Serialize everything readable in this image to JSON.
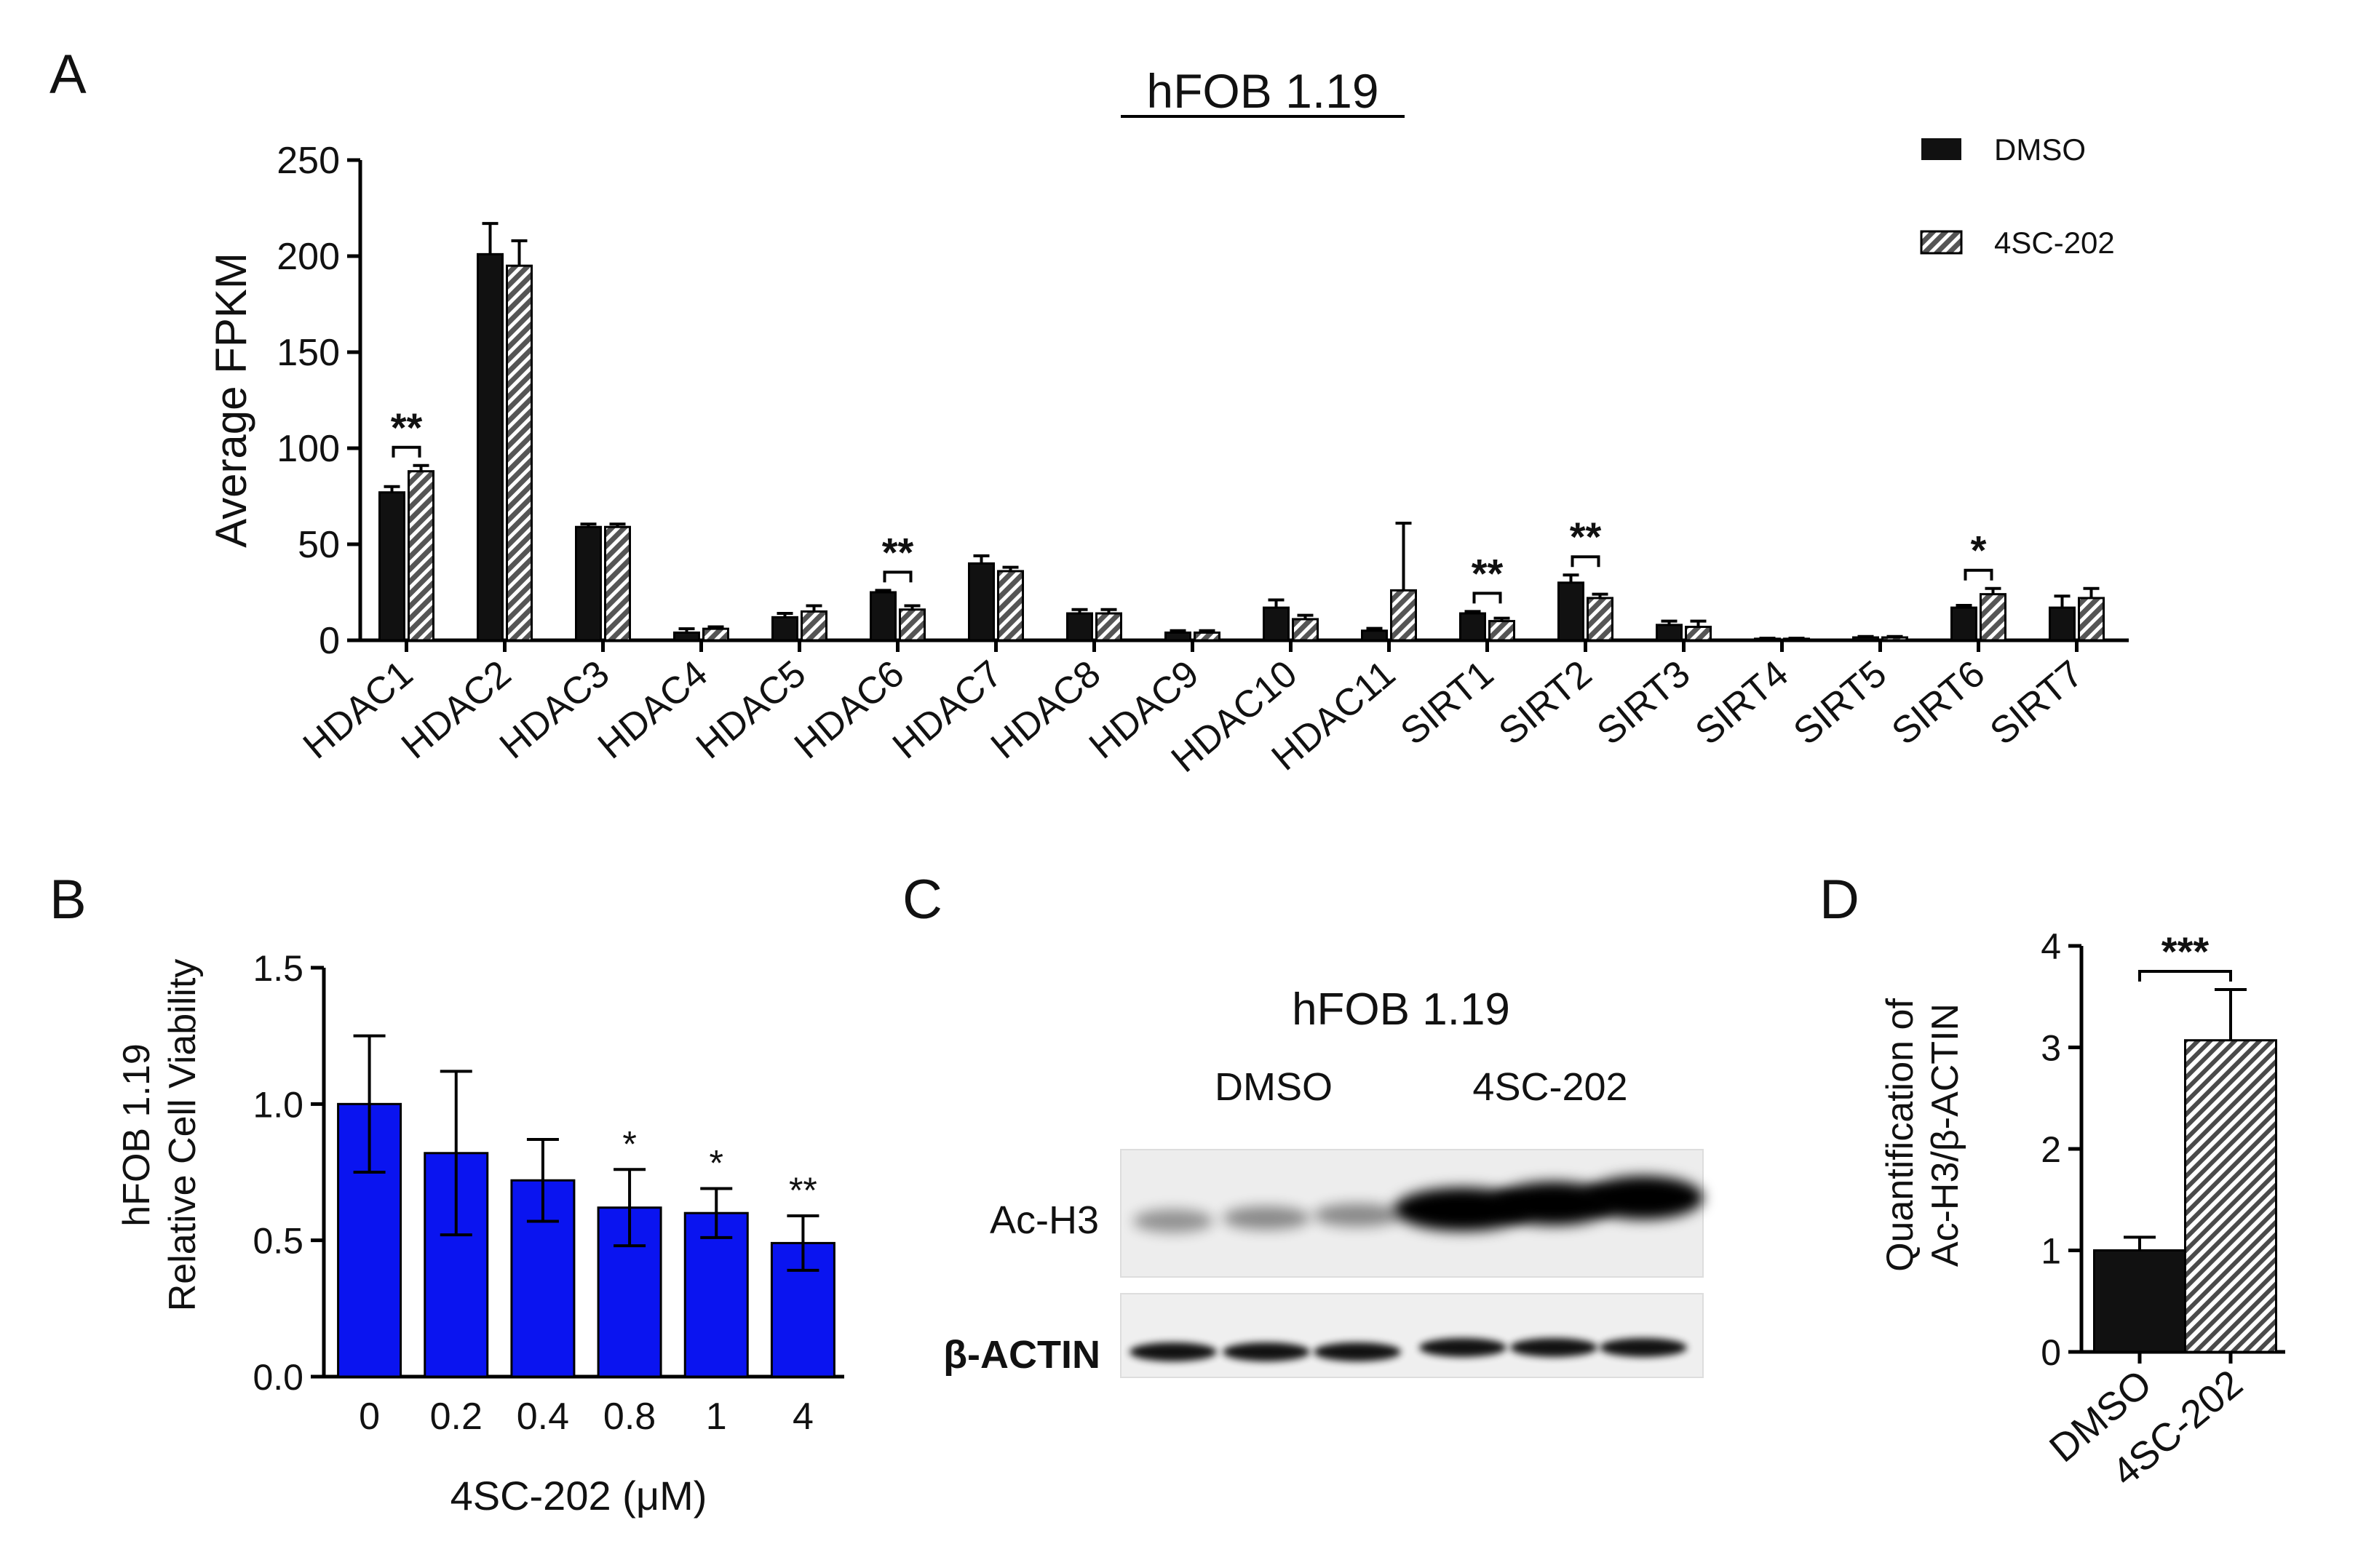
{
  "panels": {
    "a": "A",
    "b": "B",
    "c": "C",
    "d": "D"
  },
  "colors": {
    "dmso": "#111111",
    "treated_hatch": "#5a5a5a",
    "viability_bar": "#0a14f0",
    "axis": "#000000"
  },
  "chart_data": [
    {
      "type": "bar",
      "title": "hFOB 1.19",
      "xlabel": "",
      "ylabel": "Average FPKM",
      "ylim": [
        0,
        250
      ],
      "yticks": [
        "0",
        "50",
        "100",
        "150",
        "200",
        "250"
      ],
      "categories": [
        "HDAC1",
        "HDAC2",
        "HDAC3",
        "HDAC4",
        "HDAC5",
        "HDAC6",
        "HDAC7",
        "HDAC8",
        "HDAC9",
        "HDAC10",
        "HDAC11",
        "SIRT1",
        "SIRT2",
        "SIRT3",
        "SIRT4",
        "SIRT5",
        "SIRT6",
        "SIRT7"
      ],
      "series": [
        {
          "name": "DMSO",
          "values": [
            77,
            201,
            59,
            4,
            12,
            25,
            40,
            14,
            4,
            17,
            5,
            14,
            30,
            8,
            0.8,
            1.5,
            17,
            17
          ],
          "errors": [
            3,
            16,
            1.5,
            2,
            2,
            1,
            4,
            2,
            1,
            4,
            1.2,
            1,
            4,
            2,
            0.3,
            0.5,
            1.2,
            6
          ]
        },
        {
          "name": "4SC-202",
          "values": [
            88,
            195,
            59,
            6,
            15,
            16,
            36,
            14,
            4,
            11,
            26,
            10,
            22,
            7,
            0.8,
            1.5,
            24,
            22
          ],
          "errors": [
            3,
            13,
            1.5,
            1,
            3,
            2,
            2,
            2,
            1,
            2,
            35,
            1.5,
            2,
            3,
            0.3,
            0.5,
            3,
            5
          ]
        }
      ],
      "significance": [
        {
          "category": "HDAC1",
          "label": "**"
        },
        {
          "category": "HDAC6",
          "label": "**"
        },
        {
          "category": "SIRT1",
          "label": "**"
        },
        {
          "category": "SIRT2",
          "label": "**"
        },
        {
          "category": "SIRT6",
          "label": "*"
        }
      ],
      "legend": "top-right",
      "grid": false
    },
    {
      "type": "bar",
      "title": "",
      "xlabel": "4SC-202 (μM)",
      "ylabel": [
        "hFOB 1.19",
        "Relative Cell Viability"
      ],
      "ylim": [
        0,
        1.5
      ],
      "yticks": [
        "0.0",
        "0.5",
        "1.0",
        "1.5"
      ],
      "categories": [
        "0",
        "0.2",
        "0.4",
        "0.8",
        "1",
        "4"
      ],
      "values": [
        1.0,
        0.82,
        0.72,
        0.62,
        0.6,
        0.49
      ],
      "errors": [
        0.25,
        0.3,
        0.15,
        0.14,
        0.09,
        0.1
      ],
      "significance": [
        "",
        "",
        "",
        "*",
        "*",
        "**"
      ],
      "grid": false
    },
    {
      "type": "bar",
      "title": "",
      "xlabel": "",
      "ylabel": [
        "Quantification of",
        "Ac-H3/β-ACTIN"
      ],
      "ylim": [
        0,
        4
      ],
      "yticks": [
        "0",
        "1",
        "2",
        "3",
        "4"
      ],
      "categories": [
        "DMSO",
        "4SC-202"
      ],
      "values": [
        1.0,
        3.07
      ],
      "errors": [
        0.13,
        0.5
      ],
      "significance": "***",
      "grid": false
    }
  ],
  "western_blot": {
    "title": "hFOB 1.19",
    "groups": [
      "DMSO",
      "4SC-202"
    ],
    "rows": [
      "Ac-H3",
      "β-ACTIN"
    ],
    "lanes_per_group": 3
  }
}
